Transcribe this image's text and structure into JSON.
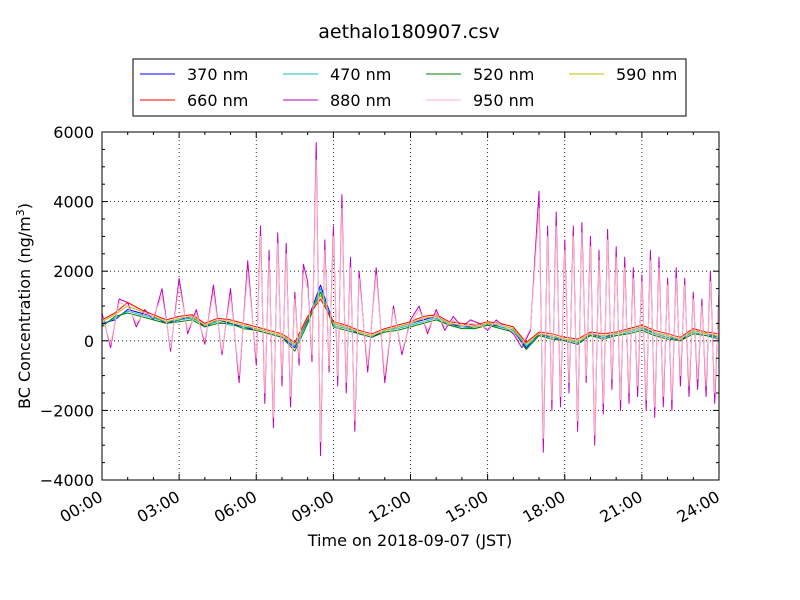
{
  "chart_data": {
    "type": "line",
    "title": "aethalo180907.csv",
    "xlabel": "Time on 2018-09-07 (JST)",
    "ylabel": "BC Concentration (ng/m",
    "ylabel_sup": "3",
    "ylabel_end": ")",
    "xlim": [
      "00:00",
      "24:00"
    ],
    "ylim": [
      -4000,
      6000
    ],
    "x_ticks": [
      "00:00",
      "03:00",
      "06:00",
      "09:00",
      "12:00",
      "15:00",
      "18:00",
      "21:00",
      "24:00"
    ],
    "y_ticks": [
      "−4000",
      "−2000",
      "0",
      "2000",
      "4000",
      "6000"
    ],
    "grid": true,
    "legend_position": "top",
    "series_colors": {
      "370 nm": "#0000ff",
      "470 nm": "#00bfbf",
      "520 nm": "#008000",
      "590 nm": "#bfbf00",
      "660 nm": "#ff0000",
      "880 nm": "#bf00bf",
      "950 nm": "#ffb6c1"
    },
    "series": [
      {
        "name": "370 nm",
        "x": [
          "00:00",
          "00:30",
          "01:00",
          "01:30",
          "02:00",
          "02:30",
          "03:00",
          "03:30",
          "04:00",
          "04:30",
          "05:00",
          "05:30",
          "06:00",
          "06:30",
          "07:00",
          "07:30",
          "08:00",
          "08:30",
          "09:00",
          "09:30",
          "10:00",
          "10:30",
          "11:00",
          "11:30",
          "12:00",
          "12:30",
          "13:00",
          "13:30",
          "14:00",
          "14:30",
          "15:00",
          "15:30",
          "16:00",
          "16:30",
          "17:00",
          "17:30",
          "18:00",
          "18:30",
          "19:00",
          "19:30",
          "20:00",
          "20:30",
          "21:00",
          "21:30",
          "22:00",
          "22:30",
          "23:00",
          "23:30",
          "24:00"
        ],
        "values": [
          500,
          600,
          900,
          800,
          700,
          500,
          600,
          700,
          400,
          600,
          500,
          400,
          300,
          200,
          100,
          -200,
          600,
          1600,
          500,
          400,
          200,
          100,
          300,
          400,
          500,
          600,
          700,
          500,
          400,
          400,
          500,
          400,
          300,
          -200,
          200,
          100,
          0,
          -100,
          200,
          100,
          200,
          300,
          400,
          200,
          100,
          0,
          300,
          200,
          100
        ]
      },
      {
        "name": "470 nm",
        "x": [
          "00:00",
          "00:30",
          "01:00",
          "01:30",
          "02:00",
          "02:30",
          "03:00",
          "03:30",
          "04:00",
          "04:30",
          "05:00",
          "05:30",
          "06:00",
          "06:30",
          "07:00",
          "07:30",
          "08:00",
          "08:30",
          "09:00",
          "09:30",
          "10:00",
          "10:30",
          "11:00",
          "11:30",
          "12:00",
          "12:30",
          "13:00",
          "13:30",
          "14:00",
          "14:30",
          "15:00",
          "15:30",
          "16:00",
          "16:30",
          "17:00",
          "17:30",
          "18:00",
          "18:30",
          "19:00",
          "19:30",
          "20:00",
          "20:30",
          "21:00",
          "21:30",
          "22:00",
          "22:30",
          "23:00",
          "23:30",
          "24:00"
        ],
        "values": [
          450,
          650,
          850,
          750,
          650,
          550,
          600,
          650,
          450,
          550,
          450,
          400,
          350,
          250,
          150,
          -150,
          550,
          1500,
          450,
          350,
          250,
          150,
          300,
          350,
          450,
          550,
          650,
          450,
          400,
          350,
          450,
          400,
          300,
          -150,
          150,
          100,
          50,
          -50,
          150,
          100,
          150,
          250,
          350,
          200,
          100,
          50,
          250,
          150,
          100
        ]
      },
      {
        "name": "520 nm",
        "x": [
          "00:00",
          "00:30",
          "01:00",
          "01:30",
          "02:00",
          "02:30",
          "03:00",
          "03:30",
          "04:00",
          "04:30",
          "05:00",
          "05:30",
          "06:00",
          "06:30",
          "07:00",
          "07:30",
          "08:00",
          "08:30",
          "09:00",
          "09:30",
          "10:00",
          "10:30",
          "11:00",
          "11:30",
          "12:00",
          "12:30",
          "13:00",
          "13:30",
          "14:00",
          "14:30",
          "15:00",
          "15:30",
          "16:00",
          "16:30",
          "17:00",
          "17:30",
          "18:00",
          "18:30",
          "19:00",
          "19:30",
          "20:00",
          "20:30",
          "21:00",
          "21:30",
          "22:00",
          "22:30",
          "23:00",
          "23:30",
          "24:00"
        ],
        "values": [
          400,
          700,
          800,
          700,
          600,
          500,
          550,
          600,
          400,
          500,
          500,
          350,
          300,
          200,
          100,
          -300,
          500,
          1400,
          400,
          300,
          200,
          100,
          250,
          300,
          400,
          500,
          600,
          450,
          350,
          350,
          450,
          350,
          250,
          -250,
          150,
          50,
          0,
          -100,
          150,
          50,
          150,
          200,
          300,
          150,
          50,
          0,
          200,
          150,
          50
        ]
      },
      {
        "name": "590 nm",
        "x": [
          "00:00",
          "00:30",
          "01:00",
          "01:30",
          "02:00",
          "02:30",
          "03:00",
          "03:30",
          "04:00",
          "04:30",
          "05:00",
          "05:30",
          "06:00",
          "06:30",
          "07:00",
          "07:30",
          "08:00",
          "08:30",
          "09:00",
          "09:30",
          "10:00",
          "10:30",
          "11:00",
          "11:30",
          "12:00",
          "12:30",
          "13:00",
          "13:30",
          "14:00",
          "14:30",
          "15:00",
          "15:30",
          "16:00",
          "16:30",
          "17:00",
          "17:30",
          "18:00",
          "18:30",
          "19:00",
          "19:30",
          "20:00",
          "20:30",
          "21:00",
          "21:30",
          "22:00",
          "22:30",
          "23:00",
          "23:30",
          "24:00"
        ],
        "values": [
          550,
          750,
          1000,
          850,
          700,
          550,
          650,
          700,
          450,
          600,
          550,
          450,
          350,
          250,
          150,
          -100,
          650,
          1300,
          500,
          400,
          250,
          150,
          300,
          400,
          500,
          650,
          700,
          500,
          450,
          400,
          500,
          450,
          350,
          -100,
          200,
          150,
          50,
          0,
          200,
          150,
          200,
          300,
          400,
          250,
          150,
          50,
          300,
          200,
          150
        ]
      },
      {
        "name": "660 nm",
        "x": [
          "00:00",
          "00:30",
          "01:00",
          "01:30",
          "02:00",
          "02:30",
          "03:00",
          "03:30",
          "04:00",
          "04:30",
          "05:00",
          "05:30",
          "06:00",
          "06:30",
          "07:00",
          "07:30",
          "08:00",
          "08:30",
          "09:00",
          "09:30",
          "10:00",
          "10:30",
          "11:00",
          "11:30",
          "12:00",
          "12:30",
          "13:00",
          "13:30",
          "14:00",
          "14:30",
          "15:00",
          "15:30",
          "16:00",
          "16:30",
          "17:00",
          "17:30",
          "18:00",
          "18:30",
          "19:00",
          "19:30",
          "20:00",
          "20:30",
          "21:00",
          "21:30",
          "22:00",
          "22:30",
          "23:00",
          "23:30",
          "24:00"
        ],
        "values": [
          600,
          800,
          1100,
          900,
          750,
          600,
          700,
          750,
          500,
          650,
          600,
          500,
          400,
          300,
          200,
          -50,
          700,
          1200,
          550,
          450,
          300,
          200,
          350,
          450,
          550,
          700,
          750,
          550,
          500,
          450,
          550,
          500,
          400,
          -50,
          250,
          200,
          100,
          50,
          250,
          200,
          250,
          350,
          450,
          300,
          200,
          100,
          350,
          250,
          200
        ]
      },
      {
        "name": "880 nm",
        "x": [
          "00:00",
          "00:20",
          "00:40",
          "01:00",
          "01:20",
          "01:40",
          "02:00",
          "02:20",
          "02:40",
          "03:00",
          "03:20",
          "03:40",
          "04:00",
          "04:20",
          "04:40",
          "05:00",
          "05:20",
          "05:40",
          "06:00",
          "06:10",
          "06:20",
          "06:30",
          "06:40",
          "06:50",
          "07:00",
          "07:10",
          "07:20",
          "07:30",
          "07:40",
          "07:50",
          "08:00",
          "08:10",
          "08:20",
          "08:30",
          "08:40",
          "08:50",
          "09:00",
          "09:10",
          "09:20",
          "09:30",
          "09:40",
          "09:50",
          "10:00",
          "10:20",
          "10:40",
          "11:00",
          "11:20",
          "11:40",
          "12:00",
          "12:20",
          "12:40",
          "13:00",
          "13:20",
          "13:40",
          "14:00",
          "14:20",
          "14:40",
          "15:00",
          "15:20",
          "15:40",
          "16:00",
          "16:20",
          "16:40",
          "17:00",
          "17:10",
          "17:20",
          "17:30",
          "17:40",
          "17:50",
          "18:00",
          "18:10",
          "18:20",
          "18:30",
          "18:40",
          "18:50",
          "19:00",
          "19:10",
          "19:20",
          "19:30",
          "19:40",
          "19:50",
          "20:00",
          "20:10",
          "20:20",
          "20:30",
          "20:40",
          "20:50",
          "21:00",
          "21:10",
          "21:20",
          "21:30",
          "21:40",
          "21:50",
          "22:00",
          "22:10",
          "22:20",
          "22:30",
          "22:40",
          "22:50",
          "23:00",
          "23:10",
          "23:20",
          "23:30",
          "23:40",
          "23:50",
          "24:00"
        ],
        "values": [
          800,
          -200,
          1200,
          1100,
          400,
          900,
          600,
          1500,
          -300,
          1800,
          200,
          900,
          -100,
          1600,
          -400,
          1500,
          -1200,
          2300,
          -700,
          3300,
          -1800,
          2600,
          -2500,
          3100,
          -1300,
          2800,
          -1900,
          1400,
          -700,
          2200,
          1700,
          -600,
          5700,
          -3300,
          2900,
          -900,
          3300,
          -1300,
          4200,
          -1500,
          2400,
          -2600,
          2000,
          -900,
          2100,
          -1200,
          1000,
          -400,
          600,
          1000,
          200,
          900,
          300,
          700,
          400,
          600,
          500,
          300,
          600,
          400,
          200,
          -200,
          300,
          4300,
          -3200,
          3300,
          -2000,
          3700,
          -1900,
          2900,
          -1500,
          3300,
          -2600,
          3400,
          -1200,
          3000,
          -3000,
          2600,
          -2100,
          3200,
          -1400,
          2700,
          -2000,
          2400,
          -1800,
          2100,
          -1600,
          1900,
          -2000,
          2600,
          -2200,
          2400,
          -1900,
          1800,
          -2000,
          2100,
          -1300,
          1800,
          -1600,
          1400,
          -1400,
          1200,
          -1600,
          2000,
          -1800,
          1400
        ]
      },
      {
        "name": "950 nm",
        "x": [
          "00:00",
          "00:20",
          "00:40",
          "01:00",
          "01:20",
          "01:40",
          "02:00",
          "02:20",
          "02:40",
          "03:00",
          "03:20",
          "03:40",
          "04:00",
          "04:20",
          "04:40",
          "05:00",
          "05:20",
          "05:40",
          "06:00",
          "06:10",
          "06:20",
          "06:30",
          "06:40",
          "06:50",
          "07:00",
          "07:10",
          "07:20",
          "07:30",
          "07:40",
          "07:50",
          "08:00",
          "08:10",
          "08:20",
          "08:30",
          "08:40",
          "08:50",
          "09:00",
          "09:10",
          "09:20",
          "09:30",
          "09:40",
          "09:50",
          "10:00",
          "10:20",
          "10:40",
          "11:00",
          "11:20",
          "11:40",
          "12:00",
          "12:20",
          "12:40",
          "13:00",
          "13:20",
          "13:40",
          "14:00",
          "14:20",
          "14:40",
          "15:00",
          "15:20",
          "15:40",
          "16:00",
          "16:20",
          "16:40",
          "17:00",
          "17:10",
          "17:20",
          "17:30",
          "17:40",
          "17:50",
          "18:00",
          "18:10",
          "18:20",
          "18:30",
          "18:40",
          "18:50",
          "19:00",
          "19:10",
          "19:20",
          "19:30",
          "19:40",
          "19:50",
          "20:00",
          "20:10",
          "20:20",
          "20:30",
          "20:40",
          "20:50",
          "21:00",
          "21:10",
          "21:20",
          "21:30",
          "21:40",
          "21:50",
          "22:00",
          "22:10",
          "22:20",
          "22:30",
          "22:40",
          "22:50",
          "23:00",
          "23:10",
          "23:20",
          "23:30",
          "23:40",
          "23:50",
          "24:00"
        ],
        "values": [
          700,
          -100,
          1100,
          1000,
          500,
          800,
          700,
          1300,
          -200,
          1600,
          300,
          800,
          0,
          1400,
          -300,
          1300,
          -1000,
          2000,
          -500,
          3000,
          -1500,
          2300,
          -2200,
          2800,
          -1000,
          2500,
          -1600,
          1200,
          -500,
          1900,
          1500,
          -400,
          5200,
          -2900,
          2600,
          -700,
          3000,
          -1000,
          3800,
          -1200,
          2100,
          -2300,
          1800,
          -700,
          1900,
          -1000,
          900,
          -300,
          500,
          900,
          300,
          800,
          400,
          600,
          400,
          500,
          450,
          350,
          550,
          400,
          250,
          -100,
          350,
          3800,
          -2800,
          3000,
          -1700,
          3300,
          -1600,
          2600,
          -1200,
          3000,
          -2300,
          3100,
          -1000,
          2700,
          -2700,
          2300,
          -1800,
          2900,
          -1100,
          2400,
          -1700,
          2100,
          -1500,
          1800,
          -1300,
          1700,
          -1700,
          2300,
          -1900,
          2100,
          -1600,
          1600,
          -1700,
          1800,
          -1000,
          1600,
          -1300,
          1200,
          -1100,
          1000,
          -1300,
          1700,
          -1500,
          1200
        ]
      }
    ]
  }
}
